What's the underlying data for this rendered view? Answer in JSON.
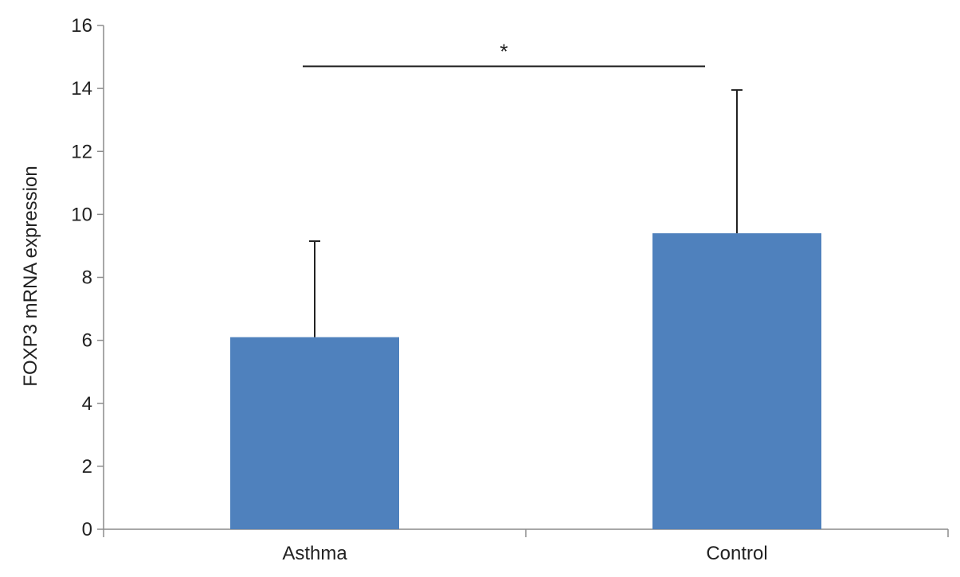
{
  "chart_data": {
    "type": "bar",
    "title": "",
    "xlabel": "",
    "ylabel": "FOXP3 mRNA expression",
    "categories": [
      "Asthma",
      "Control"
    ],
    "values": [
      6.1,
      9.4
    ],
    "error_bars_upper": [
      3.05,
      4.55
    ],
    "ylim": [
      0,
      16
    ],
    "yticks": [
      "0",
      "2",
      "4",
      "6",
      "8",
      "10",
      "12",
      "14",
      "16"
    ],
    "ytick_values": [
      0,
      2,
      4,
      6,
      8,
      10,
      12,
      14,
      16
    ],
    "bar_color": "#4f81bd",
    "grid": false,
    "legend": "none",
    "significance": {
      "between": [
        "Asthma",
        "Control"
      ],
      "y": 14.7,
      "label": "*"
    }
  }
}
